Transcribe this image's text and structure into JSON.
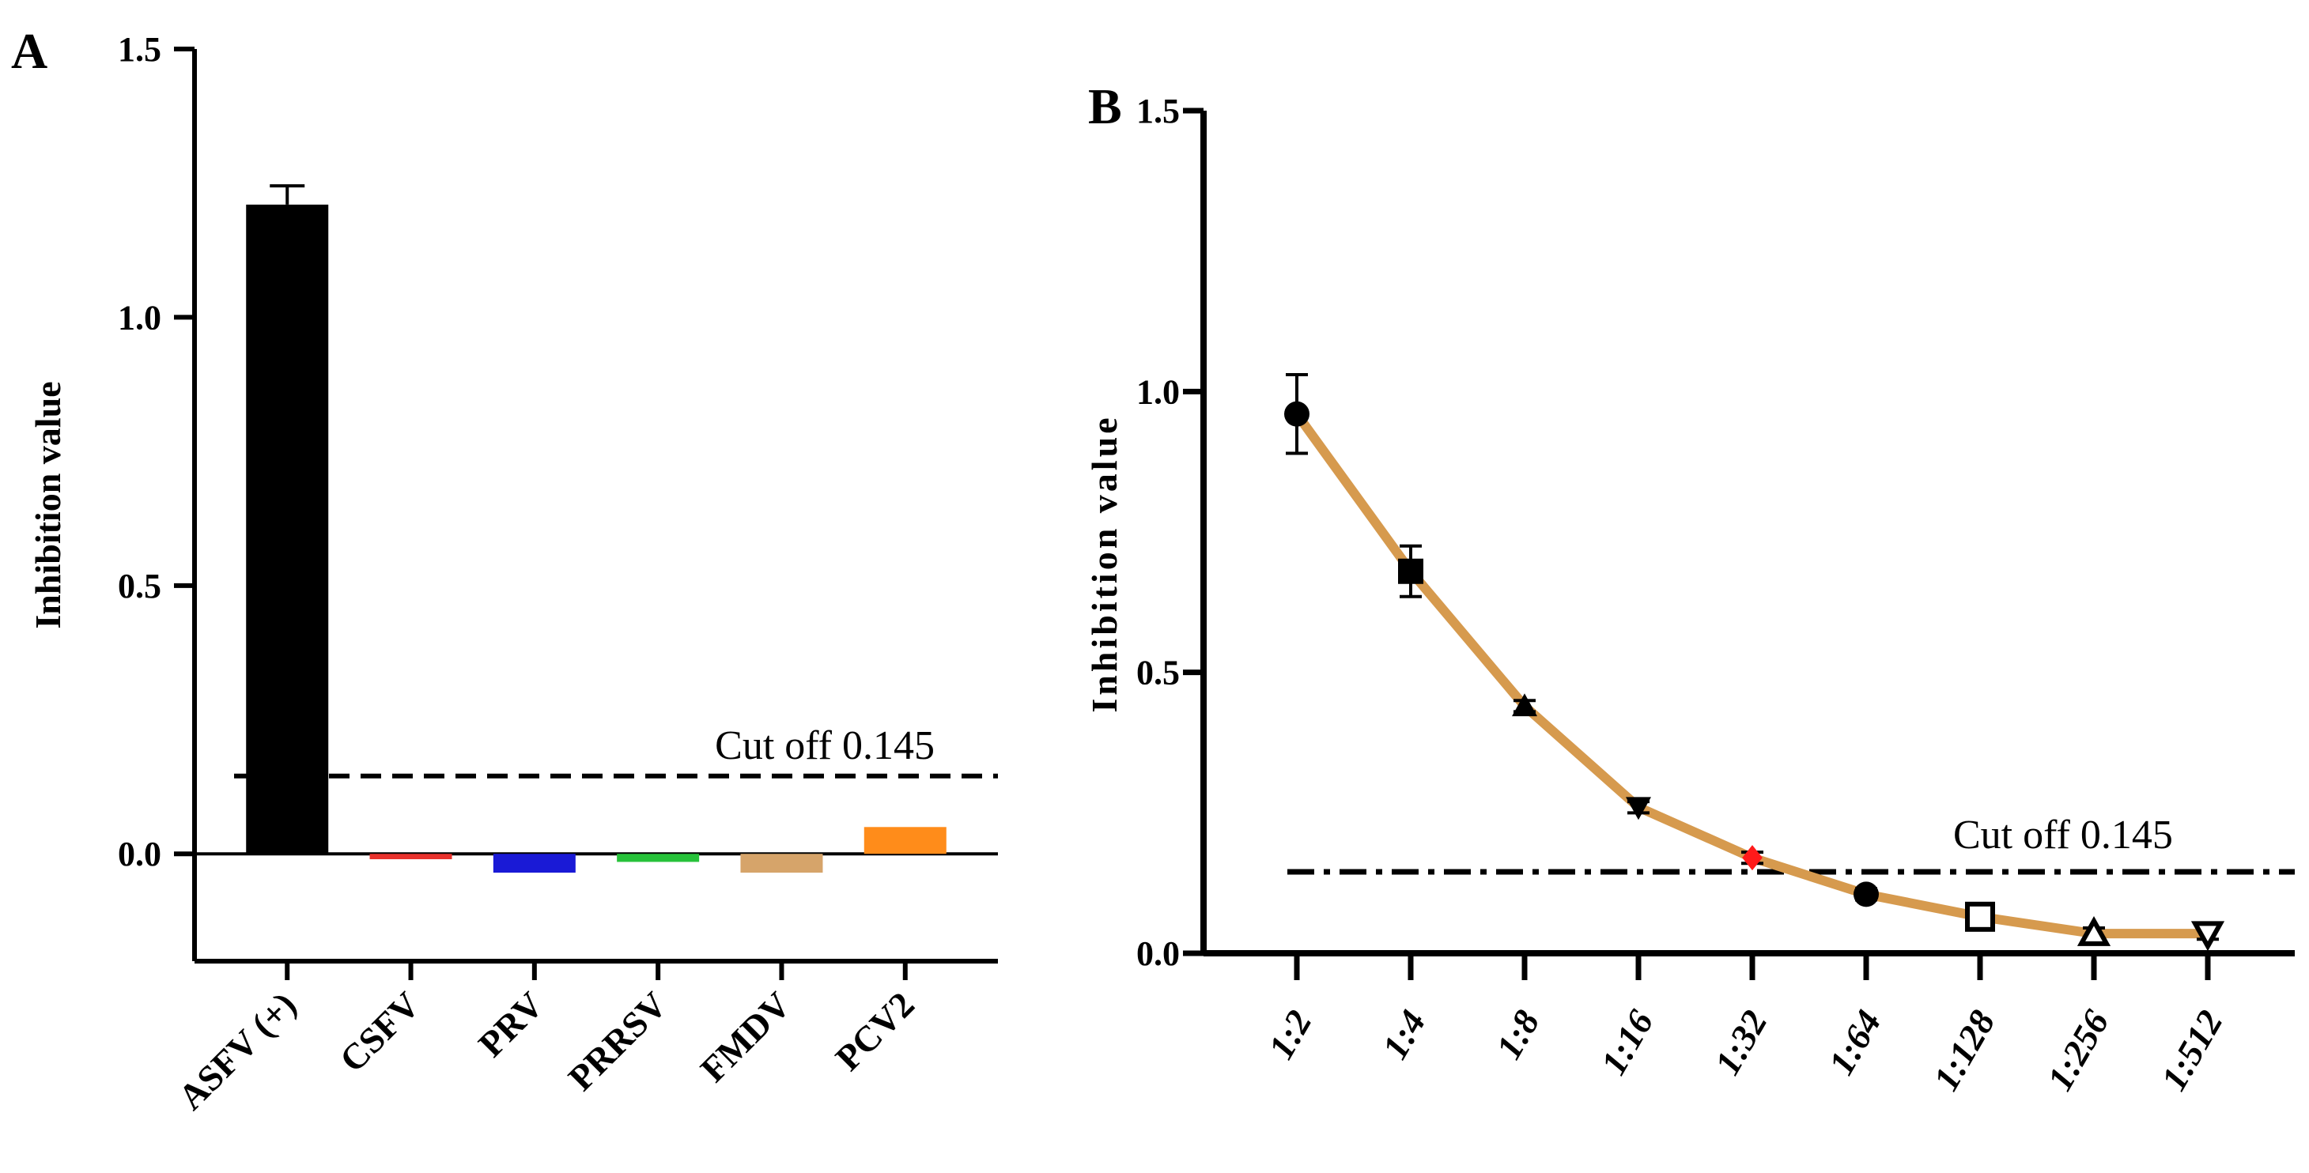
{
  "chart_data": [
    {
      "panel": "A",
      "type": "bar",
      "ylabel": "Inhibition value",
      "ylim": [
        -0.2,
        1.5
      ],
      "yticks": [
        0.0,
        0.5,
        1.0,
        1.5
      ],
      "ytick_labels": [
        "0.0",
        "0.5",
        "1.0",
        "1.5"
      ],
      "categories": [
        "ASFV (+)",
        "CSFV",
        "PRV",
        "PRRSV",
        "FMDV",
        "PCV2"
      ],
      "values": [
        1.21,
        -0.01,
        -0.035,
        -0.015,
        -0.035,
        0.05
      ],
      "error": [
        0.035,
        0,
        0,
        0,
        0,
        0
      ],
      "colors": [
        "#000000",
        "#e8312c",
        "#1a1ad6",
        "#27c23a",
        "#d6a46a",
        "#ff8c1a"
      ],
      "cutoff": {
        "value": 0.145,
        "label": "Cut off 0.145",
        "style": "dashed"
      }
    },
    {
      "panel": "B",
      "type": "line",
      "ylabel": "Inhibition value",
      "ylim": [
        0.0,
        1.5
      ],
      "yticks": [
        0.0,
        0.5,
        1.0,
        1.5
      ],
      "ytick_labels": [
        "0.0",
        "0.5",
        "1.0",
        "1.5"
      ],
      "categories": [
        "1:2",
        "1:4",
        "1:8",
        "1:16",
        "1:32",
        "1:64",
        "1:128",
        "1:256",
        "1:512"
      ],
      "values": [
        0.96,
        0.68,
        0.44,
        0.26,
        0.17,
        0.105,
        0.065,
        0.035,
        0.035
      ],
      "error": [
        0.07,
        0.045,
        0.01,
        0.01,
        0.01,
        0.01,
        0.01,
        0.01,
        0.01
      ],
      "markers": [
        "circle",
        "square",
        "triangle-up",
        "triangle-down",
        "diamond",
        "circle-half",
        "square-open",
        "triangle-up-open",
        "triangle-down-open"
      ],
      "marker_colors": [
        "#000000",
        "#000000",
        "#000000",
        "#000000",
        "#ff1a1a",
        "#000000",
        "#000000",
        "#000000",
        "#000000"
      ],
      "line_color": "#d69a4e",
      "cutoff": {
        "value": 0.145,
        "label": "Cut off 0.145",
        "style": "dashdot"
      }
    }
  ]
}
